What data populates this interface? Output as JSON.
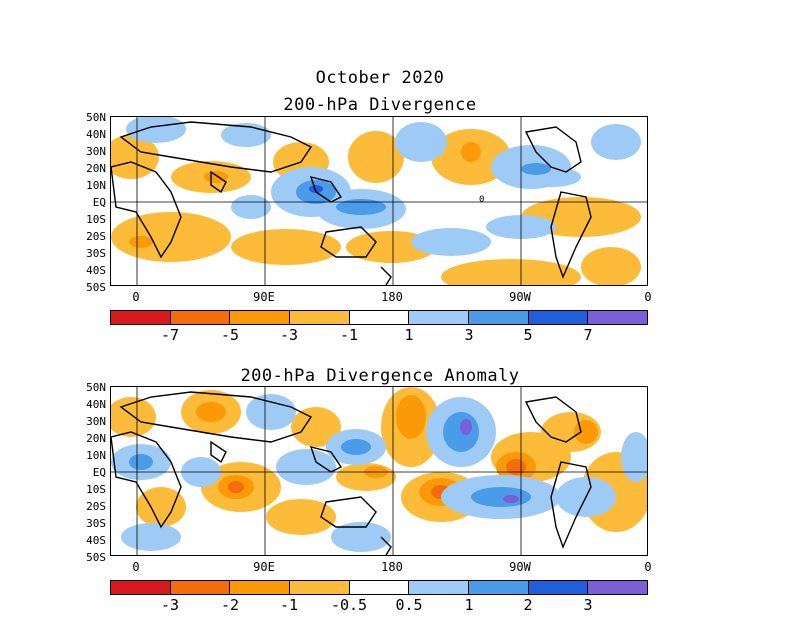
{
  "title": "October 2020",
  "panels": [
    {
      "title": "200-hPa Divergence",
      "lat_labels": [
        "50N",
        "40N",
        "30N",
        "20N",
        "10N",
        "EQ",
        "10S",
        "20S",
        "30S",
        "40S",
        "50S"
      ],
      "lon_labels": [
        "0",
        "90E",
        "180",
        "90W",
        "0"
      ],
      "colorbar_labels": [
        "-7",
        "-5",
        "-3",
        "-1",
        "1",
        "3",
        "5",
        "7"
      ],
      "colorbar_colors": [
        "#d7191c",
        "#f46d0a",
        "#fb9a06",
        "#fdbb3a",
        "#ffffff",
        "#9ecbf5",
        "#4a9be8",
        "#1f5fdc",
        "#7b5fd6"
      ]
    },
    {
      "title": "200-hPa Divergence Anomaly",
      "lat_labels": [
        "50N",
        "40N",
        "30N",
        "20N",
        "10N",
        "EQ",
        "10S",
        "20S",
        "30S",
        "40S",
        "50S"
      ],
      "lon_labels": [
        "0",
        "90E",
        "180",
        "90W",
        "0"
      ],
      "colorbar_labels": [
        "-3",
        "-2",
        "-1",
        "-0.5",
        "0.5",
        "1",
        "2",
        "3"
      ],
      "colorbar_colors": [
        "#d7191c",
        "#f46d0a",
        "#fb9a06",
        "#fdbb3a",
        "#ffffff",
        "#9ecbf5",
        "#4a9be8",
        "#1f5fdc",
        "#7b5fd6"
      ]
    }
  ],
  "contour_label": "0"
}
